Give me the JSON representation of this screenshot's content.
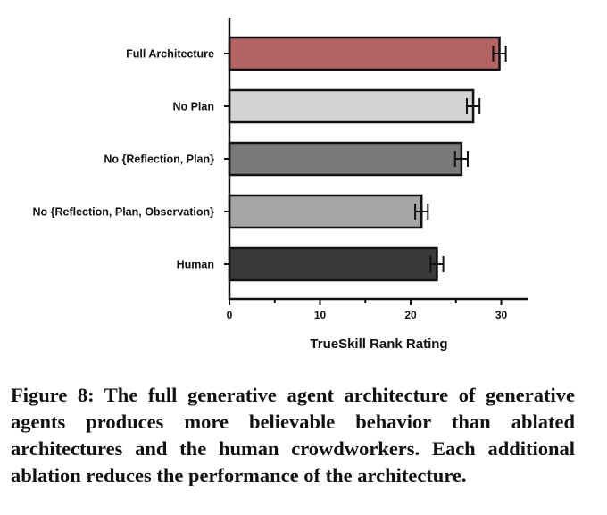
{
  "chart_data": {
    "type": "bar",
    "orientation": "horizontal",
    "categories": [
      "Full Architecture",
      "No Plan",
      "No {Reflection, Plan}",
      "No {Reflection, Plan, Observation}",
      "Human"
    ],
    "values": [
      29.8,
      26.9,
      25.6,
      21.2,
      22.9
    ],
    "errors": [
      0.7,
      0.7,
      0.7,
      0.7,
      0.7
    ],
    "colors": [
      "#b56464",
      "#d3d3d3",
      "#7a7a7a",
      "#a5a5a8",
      "#3a3a3a"
    ],
    "xlabel": "TrueSkill Rank Rating",
    "xlim": [
      0,
      33
    ],
    "xticks": [
      0,
      10,
      20,
      30
    ],
    "grid": false
  },
  "caption": "Figure 8: The full generative agent architecture of gener­ative agents produces more believable behavior than ab­lated architectures and the human crowdworkers. Each addi­tional ablation reduces the performance of the architecture."
}
